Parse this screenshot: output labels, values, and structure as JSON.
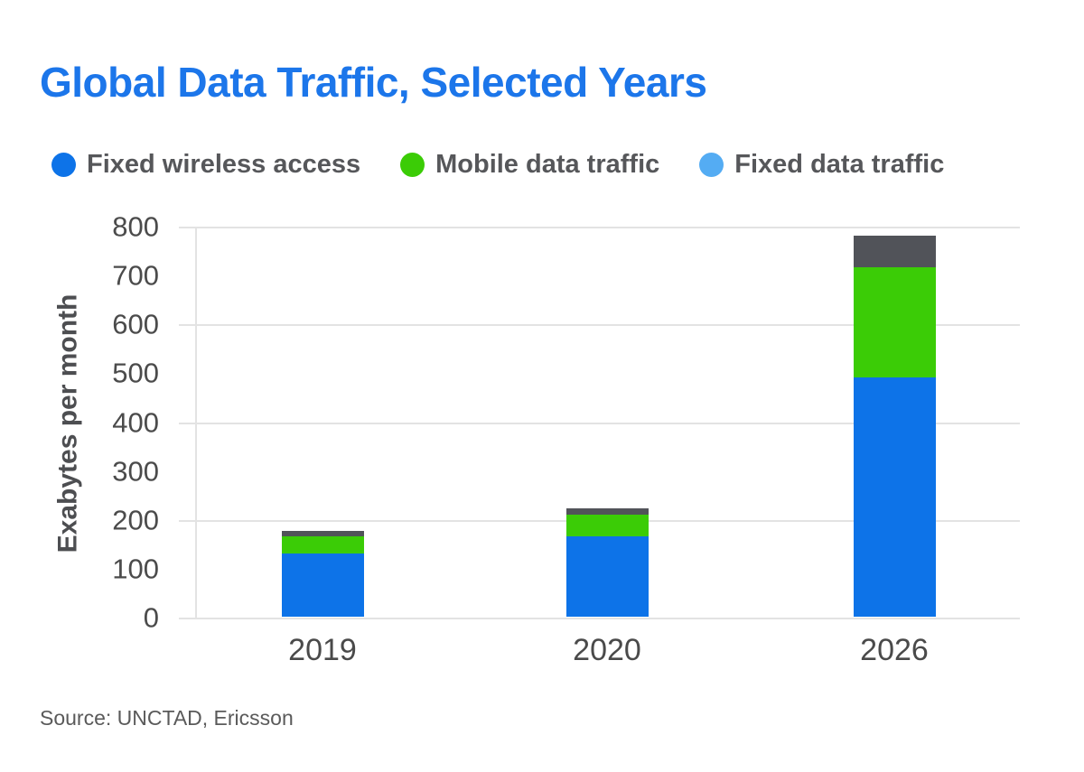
{
  "title": "Global Data Traffic, Selected Years",
  "source": "Source: UNCTAD, Ericsson",
  "colors": {
    "title_blue": "#1c76ea",
    "series_blue": "#0d73e8",
    "series_green": "#3bcc06",
    "legend_light_blue": "#54acf3",
    "bar_top_dark_gray": "#515359",
    "gridline_gray": "#e3e3e3",
    "text_gray": "#56575a"
  },
  "legend": [
    {
      "label": "Fixed wireless access",
      "color": "#0d73e8"
    },
    {
      "label": "Mobile data traffic",
      "color": "#3bcc06"
    },
    {
      "label": "Fixed data traffic",
      "color": "#54acf3"
    }
  ],
  "chart_data": {
    "type": "bar",
    "stacked": true,
    "title": "Global Data Traffic, Selected Years",
    "categories": [
      "2019",
      "2020",
      "2026"
    ],
    "series": [
      {
        "name": "Fixed wireless access",
        "legend_color": "#0d73e8",
        "bar_color": "#0d73e8",
        "values": [
          130,
          165,
          490
        ]
      },
      {
        "name": "Mobile data traffic",
        "legend_color": "#3bcc06",
        "bar_color": "#3bcc06",
        "values": [
          35,
          43,
          225
        ]
      },
      {
        "name": "Fixed data traffic",
        "legend_color": "#54acf3",
        "bar_color": "#515359",
        "values": [
          11,
          14,
          64
        ]
      }
    ],
    "xlabel": "",
    "ylabel": "Exabytes per month",
    "ylim": [
      0,
      800
    ],
    "y_ticks": [
      800,
      700,
      600,
      500,
      400,
      300,
      200,
      100,
      0
    ],
    "y_gridlines": [
      800,
      600,
      400,
      200,
      0
    ],
    "grid": true,
    "legend_position": "top"
  }
}
